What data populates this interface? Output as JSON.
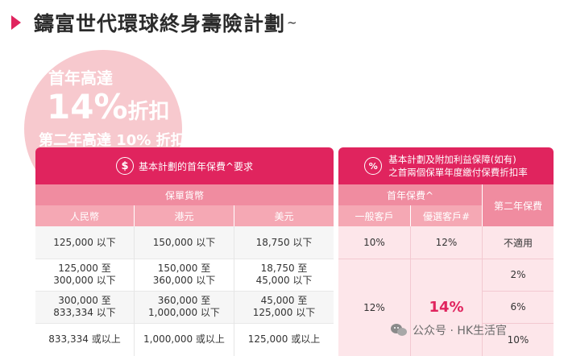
{
  "title": "鑄富世代環球終身壽險計劃",
  "title_mark": "~",
  "promo": {
    "line1": "首年高達",
    "percent": "14%",
    "discount_word": "折扣",
    "line3": "第二年高達 10% 折扣"
  },
  "left_table": {
    "header": "基本計劃的首年保費^要求",
    "currency_group": "保單貨幣",
    "columns": [
      "人民幣",
      "港元",
      "美元"
    ],
    "rows": [
      [
        "125,000 以下",
        "150,000 以下",
        "18,750 以下"
      ],
      [
        "125,000 至\n300,000 以下",
        "150,000 至\n360,000 以下",
        "18,750 至\n45,000 以下"
      ],
      [
        "300,000 至\n833,334 以下",
        "360,000 至\n1,000,000 以下",
        "45,000 至\n125,000 以下"
      ],
      [
        "833,334 或以上",
        "1,000,000 或以上",
        "125,000 或以上"
      ]
    ]
  },
  "right_table": {
    "header_line1": "基本計劃及附加利益保障(如有)",
    "header_line2": "之首兩個保單年度繳付保費折扣率",
    "first_year_label": "首年保費^",
    "second_year_label": "第二年保費",
    "col_general": "一般客戶",
    "col_preferred": "優選客戶#",
    "row1": {
      "general": "10%",
      "preferred": "12%",
      "second": "不適用"
    },
    "row2_second": "2%",
    "row3_second": "6%",
    "row4_second": "10%",
    "merged_general": "12%",
    "merged_preferred": "14%"
  },
  "watermark": "公众号 · HK生活官",
  "colors": {
    "accent": "#e0245e",
    "sub": "#f08ca0",
    "colh": "#f5a8b4",
    "circle": "#f7c9ce"
  }
}
